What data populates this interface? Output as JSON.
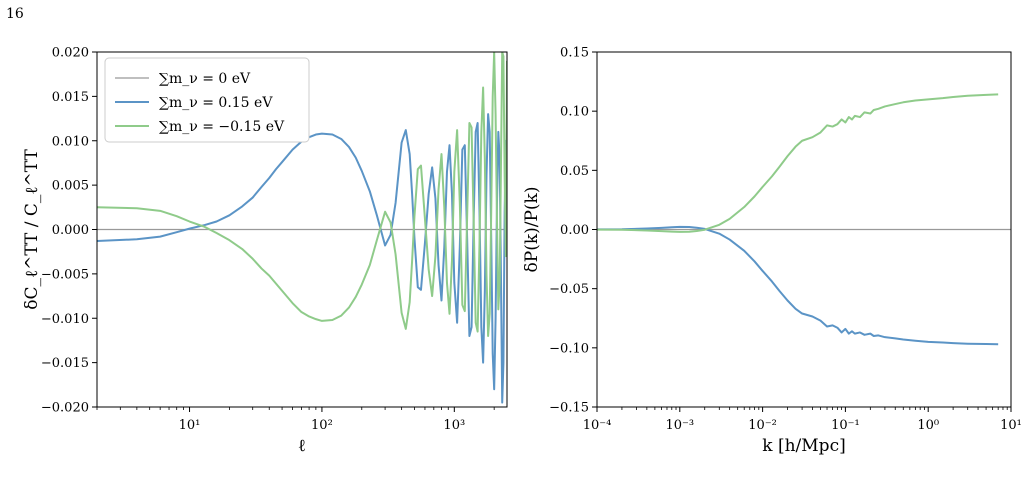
{
  "page": {
    "number": "16"
  },
  "chart_data": [
    {
      "type": "line",
      "xscale": "log",
      "xlim": [
        2,
        2500
      ],
      "ylim": [
        -0.02,
        0.02
      ],
      "xlabel": "ℓ",
      "ylabel": "δC_ℓ^TT / C_ℓ^TT",
      "x_tick_labels": [
        "10¹",
        "10²",
        "10³"
      ],
      "y_tick_labels": [
        "0.020",
        "0.015",
        "0.010",
        "0.005",
        "0.000",
        "−0.005",
        "−0.010",
        "−0.015",
        "−0.020"
      ],
      "grid": false,
      "legend_position": "top-left",
      "series": [
        {
          "name": "∑m_ν = 0 eV",
          "color": "#999999",
          "x": [
            2,
            2500
          ],
          "y": [
            0,
            0
          ]
        },
        {
          "name": "∑m_ν = 0.15 eV",
          "color": "#5b94c6",
          "x": [
            2,
            4,
            6,
            8,
            10,
            13,
            16,
            20,
            25,
            30,
            35,
            40,
            45,
            50,
            60,
            70,
            80,
            90,
            100,
            120,
            140,
            160,
            180,
            200,
            230,
            260,
            300,
            330,
            360,
            400,
            430,
            460,
            480,
            500,
            530,
            560,
            600,
            640,
            680,
            720,
            760,
            800,
            840,
            880,
            920,
            960,
            1000,
            1050,
            1100,
            1150,
            1200,
            1250,
            1300,
            1350,
            1400,
            1450,
            1500,
            1550,
            1600,
            1650,
            1700,
            1750,
            1800,
            1850,
            1900,
            1950,
            2000,
            2050,
            2100,
            2150,
            2200,
            2250,
            2300,
            2350,
            2400,
            2450,
            2500
          ],
          "y": [
            -0.0013,
            -0.0011,
            -0.0008,
            -0.0003,
            0.0001,
            0.0005,
            0.0009,
            0.0016,
            0.0026,
            0.0036,
            0.0048,
            0.0058,
            0.0068,
            0.0076,
            0.009,
            0.0099,
            0.0104,
            0.0107,
            0.0108,
            0.0107,
            0.0102,
            0.0093,
            0.0081,
            0.0066,
            0.0043,
            0.0016,
            -0.0018,
            -0.0006,
            0.003,
            0.0098,
            0.0112,
            0.0085,
            0.004,
            -0.001,
            -0.0065,
            -0.0068,
            -0.0015,
            0.004,
            0.007,
            0.0035,
            -0.004,
            -0.008,
            -0.002,
            0.0065,
            0.0095,
            0.004,
            -0.006,
            -0.0105,
            -0.002,
            0.009,
            0.0095,
            -0.001,
            -0.012,
            -0.011,
            0.001,
            0.011,
            0.012,
            0.002,
            -0.011,
            -0.015,
            -0.007,
            0.006,
            0.013,
            0.011,
            -0.001,
            -0.014,
            -0.018,
            -0.01,
            0.003,
            0.011,
            0.008,
            -0.005,
            -0.0195,
            -0.015,
            0.002,
            0.01,
            0.003
          ]
        },
        {
          "name": "∑m_ν = −0.15 eV",
          "color": "#8fcb8a",
          "x": [
            2,
            4,
            6,
            8,
            10,
            13,
            16,
            20,
            25,
            30,
            35,
            40,
            45,
            50,
            60,
            70,
            80,
            90,
            100,
            120,
            140,
            160,
            180,
            200,
            230,
            260,
            300,
            330,
            360,
            400,
            430,
            460,
            480,
            500,
            530,
            560,
            600,
            640,
            680,
            720,
            760,
            800,
            840,
            880,
            920,
            960,
            1000,
            1050,
            1100,
            1150,
            1200,
            1250,
            1300,
            1350,
            1400,
            1450,
            1500,
            1550,
            1600,
            1650,
            1700,
            1750,
            1800,
            1850,
            1900,
            1950,
            2000,
            2050,
            2100,
            2150,
            2200,
            2250,
            2300,
            2350,
            2400,
            2450,
            2500
          ],
          "y": [
            0.0025,
            0.0024,
            0.0021,
            0.0015,
            0.0009,
            0.0003,
            -0.0004,
            -0.0012,
            -0.0022,
            -0.0033,
            -0.0044,
            -0.0052,
            -0.0061,
            -0.0069,
            -0.0083,
            -0.0093,
            -0.0098,
            -0.0101,
            -0.0103,
            -0.0102,
            -0.0097,
            -0.0088,
            -0.0076,
            -0.0062,
            -0.004,
            -0.0012,
            0.002,
            0.0008,
            -0.0028,
            -0.0094,
            -0.0112,
            -0.0082,
            -0.0035,
            0.0015,
            0.0068,
            0.0072,
            0.0012,
            -0.0045,
            -0.0075,
            -0.003,
            0.0045,
            0.0085,
            0.0025,
            -0.006,
            -0.0095,
            -0.0035,
            0.0065,
            0.0112,
            0.003,
            -0.0085,
            -0.0092,
            0.0015,
            0.012,
            0.0115,
            0.001,
            -0.0105,
            -0.0115,
            -0.0015,
            0.011,
            0.016,
            0.008,
            -0.005,
            -0.012,
            -0.0095,
            0.002,
            0.015,
            0.02,
            0.013,
            0.001,
            -0.009,
            -0.006,
            0.007,
            0.02,
            0.0195,
            0.006,
            -0.003,
            0.019
          ]
        }
      ]
    },
    {
      "type": "line",
      "xscale": "log",
      "xlim": [
        0.0001,
        10
      ],
      "ylim": [
        -0.15,
        0.15
      ],
      "xlabel": "k [h/Mpc]",
      "ylabel": "δP(k)/P(k)",
      "x_tick_labels": [
        "10⁻⁴",
        "10⁻³",
        "10⁻²",
        "10⁻¹",
        "10⁰",
        "10¹"
      ],
      "y_tick_labels": [
        "0.15",
        "0.10",
        "0.05",
        "0.00",
        "−0.05",
        "−0.10",
        "−0.15"
      ],
      "grid": false,
      "series": [
        {
          "name": "∑m_ν = 0 eV",
          "color": "#999999",
          "x": [
            0.0001,
            10
          ],
          "y": [
            0,
            0
          ]
        },
        {
          "name": "∑m_ν = 0.15 eV",
          "color": "#5b94c6",
          "x": [
            0.0001,
            0.0002,
            0.0004,
            0.0006,
            0.0008,
            0.001,
            0.0013,
            0.0016,
            0.002,
            0.003,
            0.004,
            0.006,
            0.008,
            0.01,
            0.013,
            0.016,
            0.02,
            0.025,
            0.03,
            0.04,
            0.05,
            0.06,
            0.07,
            0.08,
            0.09,
            0.1,
            0.11,
            0.12,
            0.13,
            0.15,
            0.17,
            0.2,
            0.22,
            0.25,
            0.3,
            0.4,
            0.5,
            0.7,
            1,
            1.5,
            2,
            3,
            5,
            7
          ],
          "y": [
            0.0001,
            0.0002,
            0.0008,
            0.0014,
            0.0019,
            0.0022,
            0.0021,
            0.0015,
            0.0005,
            -0.0035,
            -0.0085,
            -0.018,
            -0.027,
            -0.035,
            -0.044,
            -0.052,
            -0.06,
            -0.067,
            -0.071,
            -0.0735,
            -0.077,
            -0.082,
            -0.081,
            -0.083,
            -0.087,
            -0.084,
            -0.088,
            -0.086,
            -0.088,
            -0.087,
            -0.089,
            -0.088,
            -0.09,
            -0.0895,
            -0.091,
            -0.092,
            -0.093,
            -0.094,
            -0.095,
            -0.0955,
            -0.096,
            -0.0965,
            -0.0968,
            -0.097
          ]
        },
        {
          "name": "∑m_ν = −0.15 eV",
          "color": "#8fcb8a",
          "x": [
            0.0001,
            0.0002,
            0.0004,
            0.0006,
            0.0008,
            0.001,
            0.0013,
            0.0016,
            0.002,
            0.003,
            0.004,
            0.006,
            0.008,
            0.01,
            0.013,
            0.016,
            0.02,
            0.025,
            0.03,
            0.04,
            0.05,
            0.06,
            0.07,
            0.08,
            0.09,
            0.1,
            0.11,
            0.12,
            0.13,
            0.15,
            0.17,
            0.2,
            0.22,
            0.25,
            0.3,
            0.4,
            0.5,
            0.7,
            1,
            1.5,
            2,
            3,
            5,
            7
          ],
          "y": [
            -0.0001,
            -0.0002,
            -0.0008,
            -0.0014,
            -0.0018,
            -0.002,
            -0.0019,
            -0.0013,
            -0.0002,
            0.004,
            0.009,
            0.019,
            0.028,
            0.036,
            0.045,
            0.053,
            0.062,
            0.07,
            0.075,
            0.078,
            0.082,
            0.088,
            0.087,
            0.089,
            0.093,
            0.0905,
            0.095,
            0.093,
            0.096,
            0.095,
            0.099,
            0.098,
            0.101,
            0.102,
            0.104,
            0.106,
            0.1075,
            0.109,
            0.11,
            0.111,
            0.112,
            0.113,
            0.1138,
            0.1142
          ]
        }
      ]
    }
  ]
}
